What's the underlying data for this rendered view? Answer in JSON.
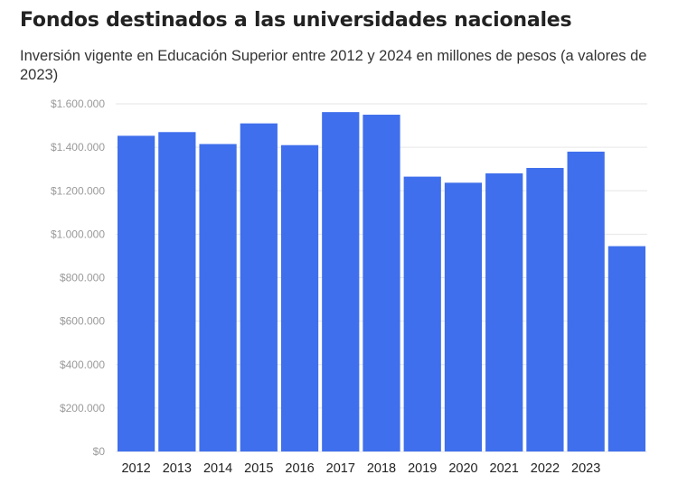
{
  "chart_data": {
    "type": "bar",
    "title": "Fondos destinados a las universidades nacionales",
    "subtitle": "Inversión vigente en Educación Superior entre 2012 y 2024 en millones de pesos (a valores de 2023)",
    "xlabel": "",
    "ylabel": "",
    "categories": [
      "2012",
      "2013",
      "2014",
      "2015",
      "2016",
      "2017",
      "2018",
      "2019",
      "2020",
      "2021",
      "2022",
      "2023",
      ""
    ],
    "values": [
      1453000,
      1470000,
      1415000,
      1510000,
      1410000,
      1562000,
      1550000,
      1265000,
      1237000,
      1280000,
      1305000,
      1380000,
      945000
    ],
    "ylim": [
      0,
      1600000
    ],
    "yticks": [
      "$0",
      "$200.000",
      "$400.000",
      "$600.000",
      "$800.000",
      "$1.000.000",
      "$1.200.000",
      "$1.400.000",
      "$1.600.000"
    ],
    "grid": true,
    "legend": "none",
    "bar_color": "#3f6fec",
    "grid_color": "#e6e6e6"
  }
}
